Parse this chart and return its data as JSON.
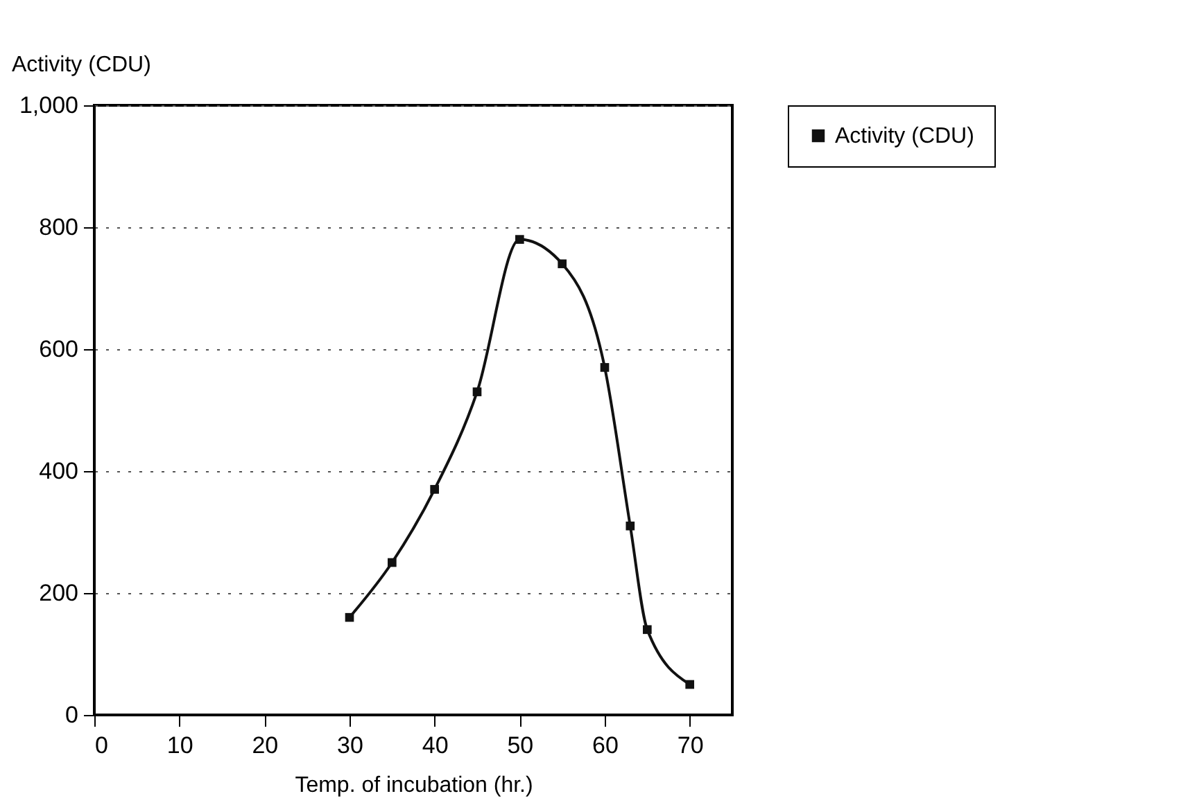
{
  "chart_data": {
    "type": "line",
    "xlabel": "Temp. of incubation (hr.)",
    "ylabel": "Activity (CDU)",
    "x": [
      30,
      35,
      40,
      45,
      50,
      55,
      60,
      63,
      65,
      70
    ],
    "series": [
      {
        "name": "Activity (CDU)",
        "color": "#111111",
        "values": [
          160,
          250,
          370,
          530,
          780,
          740,
          570,
          310,
          140,
          50
        ]
      }
    ],
    "xlim": [
      0,
      75
    ],
    "ylim": [
      0,
      1000
    ],
    "xticks": [
      0,
      10,
      20,
      30,
      40,
      50,
      60,
      70
    ],
    "yticks": [
      0,
      200,
      400,
      600,
      800,
      {
        "value": 1000,
        "label": "1,000"
      }
    ],
    "grid": "y",
    "legend": "right",
    "marker": "square",
    "line_style": "solid"
  }
}
